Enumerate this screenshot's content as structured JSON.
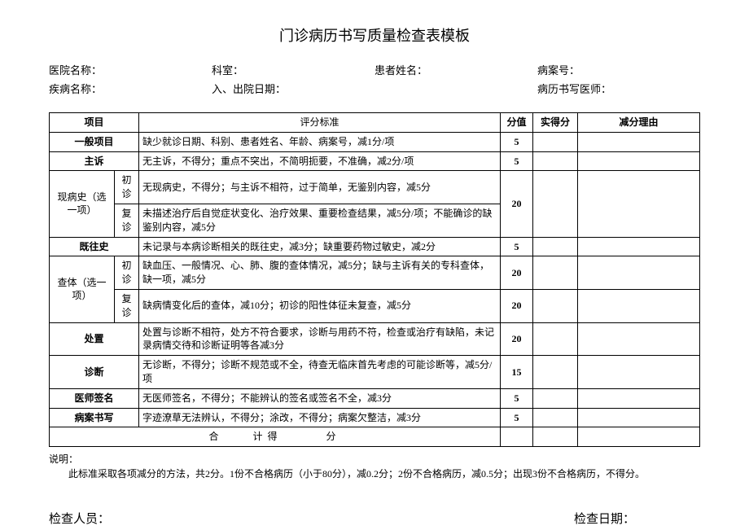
{
  "title": "门诊病历书写质量检查表模板",
  "info": {
    "hospital_label": "医院名称：",
    "dept_label": "科室：",
    "patient_label": "患者姓名：",
    "case_label": "病案号：",
    "disease_label": "疾病名称：",
    "date_label": "入、出院日期：",
    "doctor_label": "病历书写医师："
  },
  "headers": {
    "item": "项目",
    "criteria": "评分标准",
    "score": "分值",
    "actual": "实得分",
    "reason": "减分理由"
  },
  "rows": {
    "r1_item": "一般项目",
    "r1_criteria": "缺少就诊日期、科别、患者姓名、年龄、病案号，减1分/项",
    "r1_score": "5",
    "r2_item": "主诉",
    "r2_criteria": "无主诉，不得分；重点不突出，不简明扼要，不准确，减2分/项",
    "r2_score": "5",
    "r3_item": "现病史（选一项）",
    "r3_sub1": "初诊",
    "r3_criteria1": "无现病史，不得分；与主诉不相符，过于简单，无鉴别内容，减5分",
    "r3_sub2": "复诊",
    "r3_criteria2": "未描述治疗后自觉症状变化、治疗效果、重要检查结果，减5分/项；不能确诊的缺鉴别内容，减5分",
    "r3_score": "20",
    "r4_item": "既往史",
    "r4_criteria": "未记录与本病诊断相关的既往史，减3分；缺重要药物过敏史，减2分",
    "r4_score": "5",
    "r5_item": "查体（选一项）",
    "r5_sub1": "初诊",
    "r5_criteria1": "缺血压、一般情况、心、肺、腹的查体情况，减5分；缺与主诉有关的专科查体，缺一项，减5分",
    "r5_score1": "20",
    "r5_sub2": "复诊",
    "r5_criteria2": "缺病情变化后的查体，减10分；初诊的阳性体征未复查，减5分",
    "r5_score2": "20",
    "r6_item": "处置",
    "r6_criteria": "处置与诊断不相符，处方不符合要求，诊断与用药不符，检查或治疗有缺陷，未记录病情交待和诊断证明等各减3分",
    "r6_score": "20",
    "r7_item": "诊断",
    "r7_criteria": "无诊断，不得分；诊断不规范或不全，待查无临床首先考虑的可能诊断等，减5分/项",
    "r7_score": "15",
    "r8_item": "医师签名",
    "r8_criteria": "无医师签名，不得分；不能辨认的签名或签名不全，减3分",
    "r8_score": "5",
    "r9_item": "病案书写",
    "r9_criteria": "字迹潦草无法辨认，不得分；涂改，不得分；病案欠整洁，减3分",
    "r9_score": "5"
  },
  "total": "合　　计得　　　分",
  "note_label": "说明：",
  "note_text": "此标准采取各项减分的方法，共2分。1份不合格病历（小于80分），减0.2分；2份不合格病历，减0.5分；出现3份不合格病历，不得分。",
  "footer": {
    "inspector": "检查人员：",
    "date": "检查日期："
  }
}
